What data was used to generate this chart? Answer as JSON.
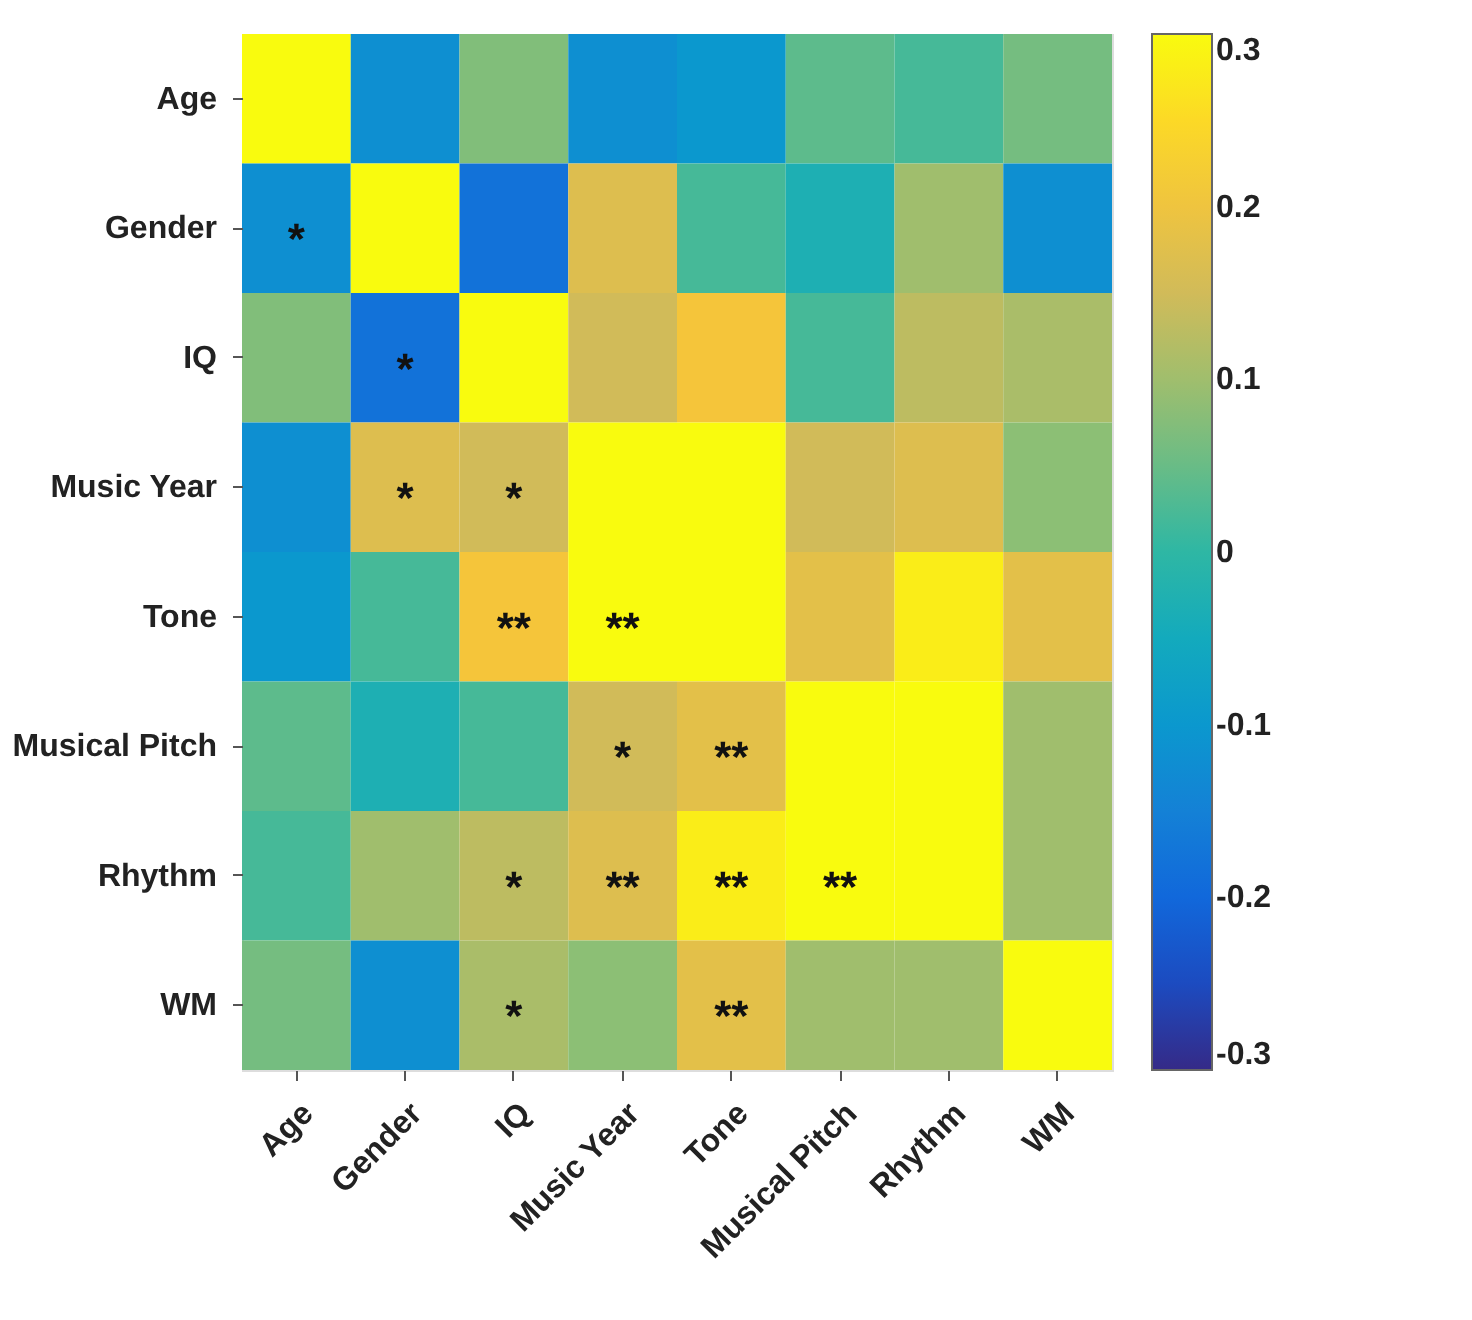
{
  "chart_data": {
    "type": "heatmap",
    "categories": [
      "Age",
      "Gender",
      "IQ",
      "Music Year",
      "Tone",
      "Musical Pitch",
      "Rhythm",
      "WM"
    ],
    "y_categories": [
      "Age",
      "Gender",
      "IQ",
      "Music Year",
      "Tone",
      "Musical Pitch",
      "Rhythm",
      "WM"
    ],
    "cells": [
      [
        0.3,
        -0.12,
        0.07,
        -0.12,
        -0.1,
        0.04,
        0.02,
        0.06
      ],
      [
        -0.12,
        0.3,
        -0.18,
        0.17,
        0.02,
        -0.03,
        0.1,
        -0.12
      ],
      [
        0.07,
        -0.18,
        0.3,
        0.15,
        0.21,
        0.02,
        0.13,
        0.11
      ],
      [
        -0.12,
        0.17,
        0.15,
        0.3,
        0.3,
        0.15,
        0.17,
        0.08
      ],
      [
        -0.1,
        0.02,
        0.21,
        0.3,
        0.3,
        0.18,
        0.28,
        0.18
      ],
      [
        0.04,
        -0.03,
        0.02,
        0.15,
        0.18,
        0.3,
        0.3,
        0.1
      ],
      [
        0.02,
        0.1,
        0.13,
        0.17,
        0.28,
        0.3,
        0.3,
        0.1
      ],
      [
        0.06,
        -0.12,
        0.11,
        0.08,
        0.18,
        0.1,
        0.1,
        0.3
      ]
    ],
    "cell_labels": [
      [
        null,
        null,
        null,
        null,
        null,
        null,
        null,
        null
      ],
      [
        "*",
        null,
        null,
        null,
        null,
        null,
        null,
        null
      ],
      [
        null,
        "*",
        null,
        null,
        null,
        null,
        null,
        null
      ],
      [
        null,
        "*",
        "*",
        null,
        null,
        null,
        null,
        null
      ],
      [
        null,
        null,
        "**",
        "**",
        null,
        null,
        null,
        null
      ],
      [
        null,
        null,
        null,
        "*",
        "**",
        null,
        null,
        null
      ],
      [
        null,
        null,
        "*",
        "**",
        "**",
        "**",
        null,
        null
      ],
      [
        null,
        null,
        "*",
        null,
        "**",
        null,
        null,
        null
      ]
    ],
    "clim": [
      -0.3,
      0.3
    ],
    "cticks": [
      -0.3,
      -0.2,
      -0.1,
      0,
      0.1,
      0.2,
      0.3
    ]
  }
}
